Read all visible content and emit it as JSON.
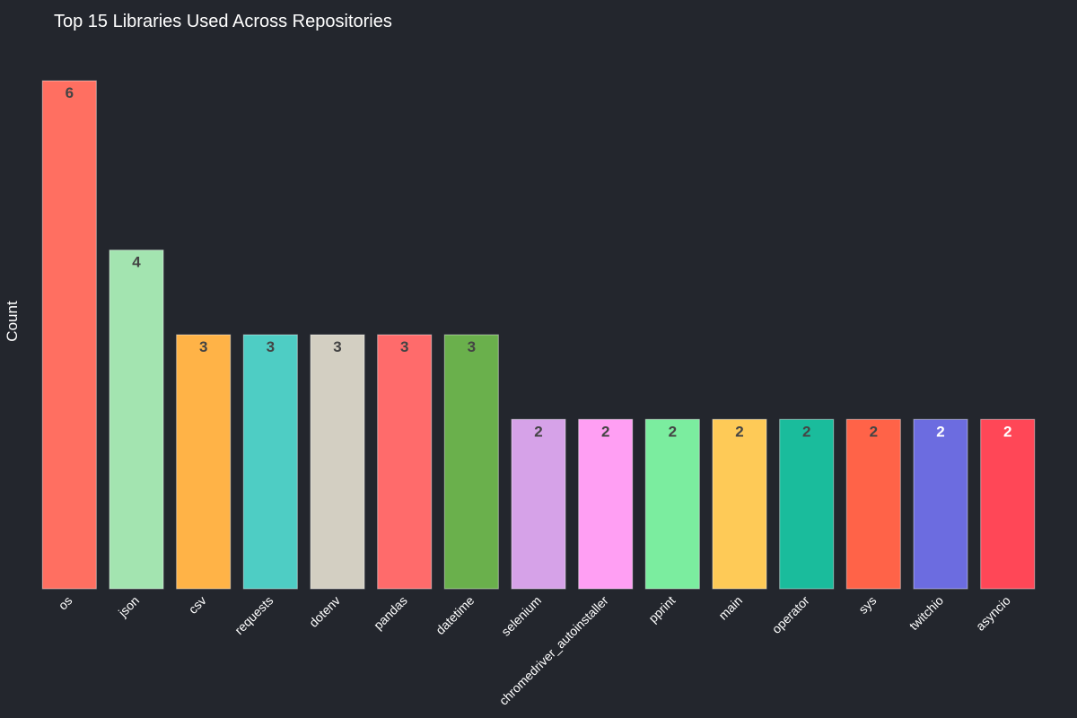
{
  "chart_data": {
    "type": "bar",
    "title": "Top 15 Libraries Used Across Repositories",
    "xlabel": "",
    "ylabel": "Count",
    "ylim": [
      0,
      6
    ],
    "grid": false,
    "categories": [
      "os",
      "json",
      "csv",
      "requests",
      "dotenv",
      "pandas",
      "datetime",
      "selenium",
      "chromedriver_autoinstaller",
      "pprint",
      "main",
      "operator",
      "sys",
      "twitchio",
      "asyncio"
    ],
    "values": [
      6,
      4,
      3,
      3,
      3,
      3,
      3,
      2,
      2,
      2,
      2,
      2,
      2,
      2,
      2
    ],
    "colors": [
      "#ff6f61",
      "#a3e4b0",
      "#ffb347",
      "#4ecdc4",
      "#d3cfc2",
      "#ff6b6b",
      "#6ab04c",
      "#d6a2e8",
      "#ff9ff3",
      "#7bed9f",
      "#feca57",
      "#1abc9c",
      "#ff6348",
      "#6c6ce0",
      "#ff4757"
    ],
    "value_label_colors": [
      "#444444",
      "#444444",
      "#444444",
      "#444444",
      "#444444",
      "#444444",
      "#444444",
      "#444444",
      "#444444",
      "#444444",
      "#444444",
      "#444444",
      "#444444",
      "#ffffff",
      "#ffffff"
    ]
  }
}
